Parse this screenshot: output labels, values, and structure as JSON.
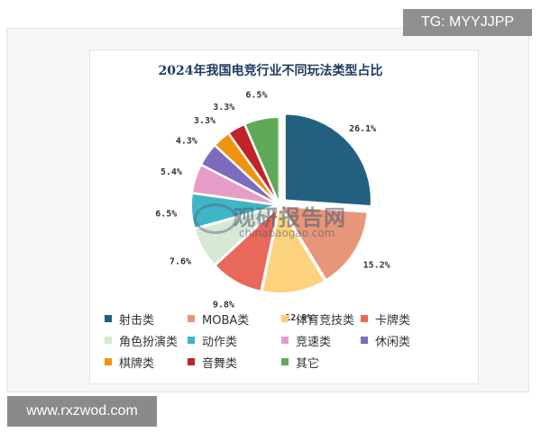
{
  "watermark_top": "TG: MYYJJPP",
  "watermark_bottom": "www.rxzwod.com",
  "chart_watermark": {
    "cn": "观研报告网",
    "en": "chinabaogao.com"
  },
  "chart_data": {
    "type": "pie",
    "title": "2024年我国电竞行业不同玩法类型占比",
    "legend_position": "bottom",
    "slices": [
      {
        "label": "射击类",
        "value": 26.1,
        "display": "26.1%",
        "color": "#236080"
      },
      {
        "label": "MOBA类",
        "value": 15.2,
        "display": "15.2%",
        "color": "#e8967a"
      },
      {
        "label": "体育竞技类",
        "value": 12.0,
        "display": "12.0%",
        "color": "#fcd27e"
      },
      {
        "label": "卡牌类",
        "value": 9.8,
        "display": "9.8%",
        "color": "#e8685a"
      },
      {
        "label": "角色扮演类",
        "value": 7.6,
        "display": "7.6%",
        "color": "#d8e8d4"
      },
      {
        "label": "动作类",
        "value": 6.5,
        "display": "6.5%",
        "color": "#3fb6c7"
      },
      {
        "label": "竞速类",
        "value": 5.4,
        "display": "5.4%",
        "color": "#e89cc8"
      },
      {
        "label": "休闲类",
        "value": 4.3,
        "display": "4.3%",
        "color": "#7d6bbd"
      },
      {
        "label": "棋牌类",
        "value": 3.3,
        "display": "3.3%",
        "color": "#f0930f"
      },
      {
        "label": "音舞类",
        "value": 3.3,
        "display": "3.3%",
        "color": "#c0242a"
      },
      {
        "label": "其它",
        "value": 6.5,
        "display": "6.5%",
        "color": "#5faa58"
      }
    ]
  }
}
